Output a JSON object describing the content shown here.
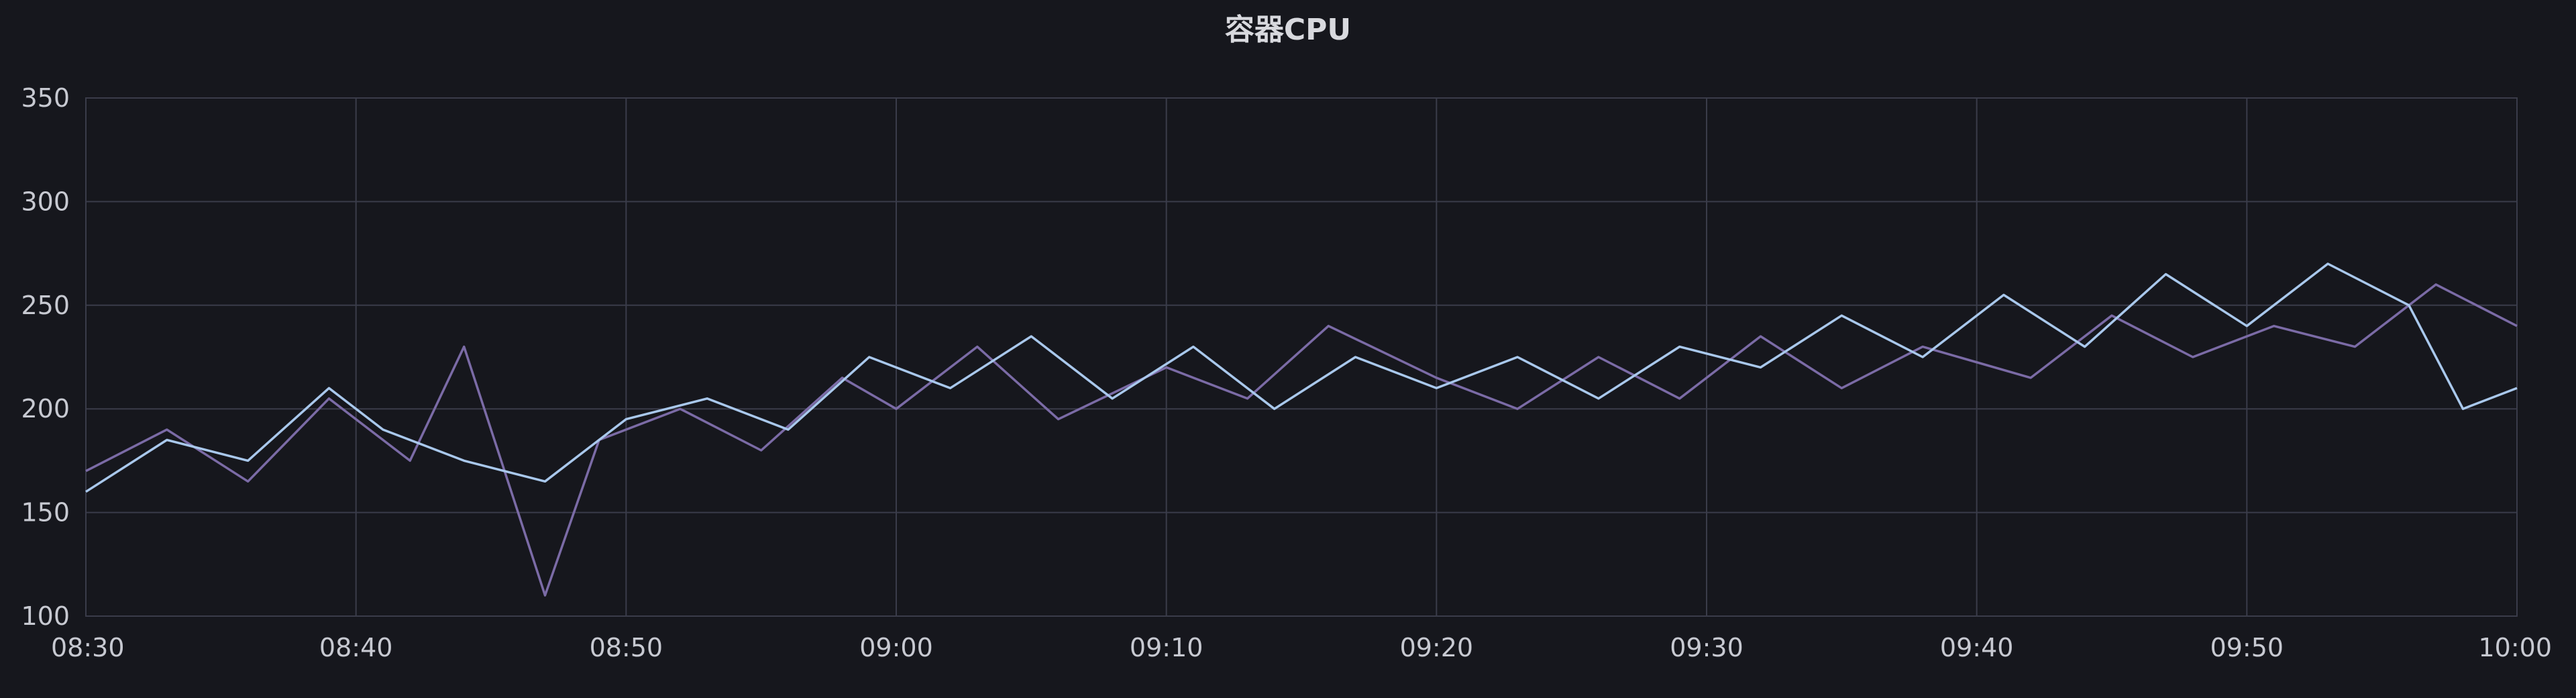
{
  "panel": {
    "title": "容器CPU"
  },
  "colors": {
    "background": "#16171d",
    "grid": "#3a3c4a",
    "series_a": "#7b6ba6",
    "series_b": "#a9c8ec",
    "text": "#c7c9d1"
  },
  "chart_data": {
    "type": "line",
    "title": "容器CPU",
    "xlabel": "",
    "ylabel": "",
    "x_ticks": [
      "08:30",
      "08:40",
      "08:50",
      "09:00",
      "09:10",
      "09:20",
      "09:30",
      "09:40",
      "09:50",
      "10:00"
    ],
    "y_ticks": [
      100,
      150,
      200,
      250,
      300,
      350
    ],
    "xlim": [
      "08:30",
      "10:00"
    ],
    "ylim": [
      100,
      350
    ],
    "grid": true,
    "legend": "none",
    "series": [
      {
        "color": "#7b6ba6",
        "points": [
          [
            "08:30",
            170
          ],
          [
            "08:33",
            190
          ],
          [
            "08:36",
            165
          ],
          [
            "08:39",
            205
          ],
          [
            "08:42",
            175
          ],
          [
            "08:44",
            230
          ],
          [
            "08:46",
            150
          ],
          [
            "08:47",
            110
          ],
          [
            "08:49",
            185
          ],
          [
            "08:52",
            200
          ],
          [
            "08:55",
            180
          ],
          [
            "08:58",
            215
          ],
          [
            "09:00",
            200
          ],
          [
            "09:03",
            230
          ],
          [
            "09:06",
            195
          ],
          [
            "09:10",
            220
          ],
          [
            "09:13",
            205
          ],
          [
            "09:16",
            240
          ],
          [
            "09:20",
            215
          ],
          [
            "09:23",
            200
          ],
          [
            "09:26",
            225
          ],
          [
            "09:29",
            205
          ],
          [
            "09:32",
            235
          ],
          [
            "09:35",
            210
          ],
          [
            "09:38",
            230
          ],
          [
            "09:42",
            215
          ],
          [
            "09:45",
            245
          ],
          [
            "09:48",
            225
          ],
          [
            "09:51",
            240
          ],
          [
            "09:54",
            230
          ],
          [
            "09:57",
            260
          ],
          [
            "10:00",
            240
          ]
        ]
      },
      {
        "color": "#a9c8ec",
        "points": [
          [
            "08:30",
            160
          ],
          [
            "08:33",
            185
          ],
          [
            "08:36",
            175
          ],
          [
            "08:39",
            210
          ],
          [
            "08:41",
            190
          ],
          [
            "08:44",
            175
          ],
          [
            "08:47",
            165
          ],
          [
            "08:50",
            195
          ],
          [
            "08:53",
            205
          ],
          [
            "08:56",
            190
          ],
          [
            "08:59",
            225
          ],
          [
            "09:02",
            210
          ],
          [
            "09:05",
            235
          ],
          [
            "09:08",
            205
          ],
          [
            "09:11",
            230
          ],
          [
            "09:14",
            200
          ],
          [
            "09:17",
            225
          ],
          [
            "09:20",
            210
          ],
          [
            "09:23",
            225
          ],
          [
            "09:26",
            205
          ],
          [
            "09:29",
            230
          ],
          [
            "09:32",
            220
          ],
          [
            "09:35",
            245
          ],
          [
            "09:38",
            225
          ],
          [
            "09:41",
            255
          ],
          [
            "09:44",
            230
          ],
          [
            "09:47",
            265
          ],
          [
            "09:50",
            240
          ],
          [
            "09:53",
            270
          ],
          [
            "09:56",
            250
          ],
          [
            "09:58",
            200
          ],
          [
            "10:00",
            210
          ]
        ]
      }
    ]
  }
}
